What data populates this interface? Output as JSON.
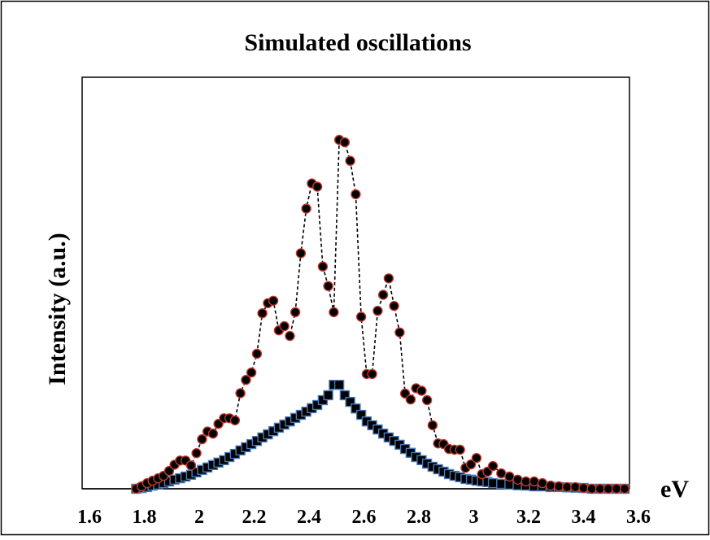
{
  "chart_data": {
    "type": "scatter",
    "title": "Simulated oscillations",
    "xlabel": "eV",
    "ylabel": "Intensity (a.u.)",
    "xlim": [
      1.6,
      3.6
    ],
    "ylim": [
      0,
      1
    ],
    "xticks": [
      1.6,
      1.8,
      2,
      2.2,
      2.4,
      2.6,
      2.8,
      3,
      3.2,
      3.4,
      3.6
    ],
    "xtick_labels": [
      "1.6",
      "1.8",
      "2",
      "2.2",
      "2.4",
      "2.6",
      "2.8",
      "3",
      "3.2",
      "3.4",
      "3.6"
    ],
    "grid": false,
    "legend": "none",
    "series": [
      {
        "marker": "circle",
        "line": "dashed",
        "color": "#000000",
        "edge_color": "#c0392b",
        "x": [
          1.77,
          1.79,
          1.81,
          1.83,
          1.85,
          1.87,
          1.89,
          1.91,
          1.93,
          1.95,
          1.97,
          1.99,
          2.01,
          2.03,
          2.05,
          2.07,
          2.09,
          2.11,
          2.13,
          2.15,
          2.17,
          2.19,
          2.21,
          2.23,
          2.25,
          2.27,
          2.29,
          2.31,
          2.33,
          2.35,
          2.37,
          2.39,
          2.41,
          2.43,
          2.45,
          2.47,
          2.49,
          2.51,
          2.53,
          2.55,
          2.57,
          2.59,
          2.61,
          2.63,
          2.65,
          2.67,
          2.69,
          2.71,
          2.73,
          2.75,
          2.77,
          2.79,
          2.81,
          2.83,
          2.85,
          2.87,
          2.89,
          2.91,
          2.93,
          2.95,
          2.97,
          2.99,
          3.01,
          3.03,
          3.05,
          3.07,
          3.1,
          3.13,
          3.16,
          3.19,
          3.22,
          3.25,
          3.28,
          3.31,
          3.34,
          3.37,
          3.4,
          3.43,
          3.46,
          3.49,
          3.52,
          3.55
        ],
        "y": [
          0.0,
          0.007,
          0.016,
          0.023,
          0.03,
          0.037,
          0.051,
          0.069,
          0.081,
          0.081,
          0.067,
          0.102,
          0.142,
          0.164,
          0.158,
          0.186,
          0.202,
          0.202,
          0.196,
          0.274,
          0.312,
          0.333,
          0.387,
          0.503,
          0.532,
          0.539,
          0.454,
          0.466,
          0.438,
          0.506,
          0.675,
          0.803,
          0.875,
          0.866,
          0.637,
          0.581,
          0.506,
          1.0,
          0.993,
          0.94,
          0.844,
          0.493,
          0.329,
          0.329,
          0.51,
          0.556,
          0.603,
          0.524,
          0.448,
          0.273,
          0.256,
          0.288,
          0.281,
          0.254,
          0.182,
          0.13,
          0.128,
          0.114,
          0.112,
          0.112,
          0.06,
          0.07,
          0.088,
          0.042,
          0.049,
          0.065,
          0.044,
          0.035,
          0.026,
          0.021,
          0.021,
          0.016,
          0.009,
          0.007,
          0.005,
          0.005,
          0.002,
          0.0,
          0.0,
          0.0,
          0.0,
          0.0
        ]
      },
      {
        "marker": "square",
        "line": "solid",
        "color": "#000000",
        "edge_color": "#4a7ab8",
        "x": [
          1.77,
          1.79,
          1.81,
          1.83,
          1.85,
          1.87,
          1.89,
          1.91,
          1.93,
          1.95,
          1.97,
          1.99,
          2.01,
          2.03,
          2.05,
          2.07,
          2.09,
          2.11,
          2.13,
          2.15,
          2.17,
          2.19,
          2.21,
          2.23,
          2.25,
          2.27,
          2.29,
          2.31,
          2.33,
          2.35,
          2.37,
          2.39,
          2.41,
          2.43,
          2.45,
          2.47,
          2.49,
          2.51,
          2.53,
          2.55,
          2.57,
          2.59,
          2.61,
          2.63,
          2.65,
          2.67,
          2.69,
          2.71,
          2.73,
          2.75,
          2.77,
          2.79,
          2.81,
          2.83,
          2.85,
          2.87,
          2.89,
          2.91,
          2.93,
          2.95,
          2.97,
          2.99,
          3.01,
          3.03,
          3.05,
          3.07,
          3.1,
          3.13,
          3.16,
          3.19,
          3.22,
          3.25,
          3.28,
          3.31,
          3.34,
          3.37,
          3.4,
          3.43,
          3.46,
          3.49,
          3.52,
          3.55
        ],
        "y": [
          0.0,
          0.002,
          0.005,
          0.009,
          0.012,
          0.016,
          0.021,
          0.026,
          0.03,
          0.035,
          0.04,
          0.047,
          0.054,
          0.061,
          0.068,
          0.075,
          0.082,
          0.091,
          0.1,
          0.11,
          0.119,
          0.128,
          0.137,
          0.147,
          0.156,
          0.165,
          0.175,
          0.184,
          0.193,
          0.203,
          0.212,
          0.221,
          0.231,
          0.24,
          0.254,
          0.268,
          0.298,
          0.298,
          0.268,
          0.249,
          0.23,
          0.212,
          0.193,
          0.182,
          0.17,
          0.158,
          0.147,
          0.137,
          0.126,
          0.114,
          0.103,
          0.091,
          0.082,
          0.072,
          0.063,
          0.056,
          0.049,
          0.042,
          0.037,
          0.033,
          0.028,
          0.026,
          0.023,
          0.021,
          0.019,
          0.016,
          0.014,
          0.012,
          0.01,
          0.009,
          0.007,
          0.007,
          0.005,
          0.005,
          0.004,
          0.003,
          0.002,
          0.0,
          0.0,
          0.0,
          0.0,
          0.0
        ]
      }
    ]
  }
}
